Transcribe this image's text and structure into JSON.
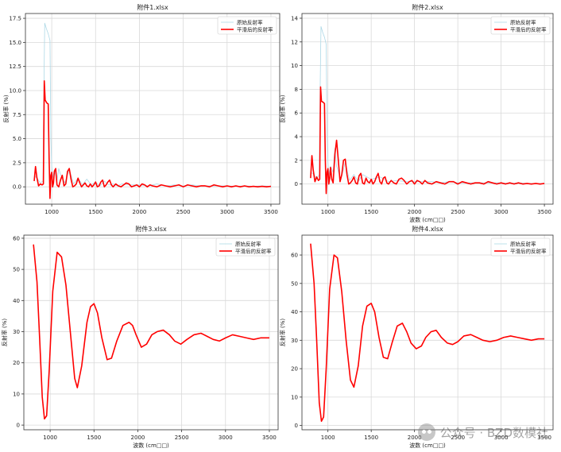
{
  "chart_data": [
    {
      "type": "line",
      "title": "附件1.xlsx",
      "xlabel": "",
      "ylabel": "反射率 (%)",
      "xlim": [
        700,
        3600
      ],
      "ylim": [
        -1.8,
        18
      ],
      "xticks": [
        1000,
        1500,
        2000,
        2500,
        3000,
        3500
      ],
      "yticks": [
        0.0,
        2.5,
        5.0,
        7.5,
        10.0,
        12.5,
        15.0,
        17.5
      ],
      "ytick_labels": [
        "0.0",
        "2.5",
        "5.0",
        "7.5",
        "10.0",
        "12.5",
        "15.0",
        "17.5"
      ],
      "legend": "top-right",
      "grid": true,
      "series": [
        {
          "name": "原始反射率",
          "color": "#add8e6",
          "x": [
            800,
            840,
            870,
            900,
            910,
            920,
            940,
            960,
            980,
            990,
            1000,
            1010,
            1030,
            1060,
            1080,
            1100,
            1150,
            1200,
            1250,
            1300,
            1350,
            1400,
            1450,
            1500,
            1550,
            1600,
            1650,
            1700,
            1750,
            1800,
            1900,
            2000,
            2100,
            2200,
            2300,
            2400,
            2500,
            2600,
            2700,
            2800,
            2900,
            3000,
            3100,
            3200,
            3300,
            3400,
            3500
          ],
          "y": [
            1.2,
            0.8,
            0.4,
            0.6,
            9.5,
            17.0,
            16.4,
            15.9,
            15.2,
            5.0,
            2.2,
            0.9,
            1.8,
            0.6,
            1.9,
            1.3,
            0.4,
            1.8,
            0.3,
            0.9,
            0.2,
            0.8,
            0.2,
            0.5,
            0.1,
            0.6,
            0.2,
            0.3,
            0.1,
            0.3,
            0.2,
            0.2,
            0.1,
            0.3,
            0.1,
            0.2,
            0.1,
            0.2,
            0.1,
            0.1,
            0.1,
            0.1,
            0.05,
            0.1,
            0.05,
            0.1,
            0.05
          ]
        },
        {
          "name": "平滑后的反射率",
          "color": "#ff0000",
          "x": [
            800,
            815,
            830,
            850,
            870,
            890,
            905,
            915,
            925,
            945,
            960,
            970,
            980,
            990,
            1000,
            1010,
            1020,
            1030,
            1045,
            1060,
            1080,
            1100,
            1120,
            1140,
            1160,
            1180,
            1200,
            1220,
            1240,
            1260,
            1280,
            1300,
            1320,
            1340,
            1360,
            1380,
            1400,
            1420,
            1440,
            1460,
            1480,
            1500,
            1520,
            1540,
            1560,
            1580,
            1600,
            1620,
            1640,
            1660,
            1680,
            1700,
            1730,
            1760,
            1790,
            1820,
            1850,
            1880,
            1910,
            1940,
            1970,
            2000,
            2030,
            2060,
            2090,
            2120,
            2150,
            2200,
            2250,
            2300,
            2350,
            2400,
            2450,
            2500,
            2550,
            2600,
            2650,
            2700,
            2750,
            2800,
            2850,
            2900,
            2950,
            3000,
            3050,
            3100,
            3150,
            3200,
            3250,
            3300,
            3350,
            3400,
            3450,
            3500
          ],
          "y": [
            0.6,
            2.1,
            1.0,
            0.1,
            0.3,
            0.2,
            0.3,
            11.0,
            9.0,
            8.7,
            8.6,
            3.0,
            -1.2,
            1.2,
            1.5,
            0.0,
            0.4,
            1.6,
            1.9,
            0.2,
            0.0,
            0.7,
            1.2,
            0.1,
            0.3,
            1.6,
            1.9,
            0.8,
            0.0,
            0.1,
            0.3,
            0.9,
            0.4,
            0.0,
            0.2,
            0.4,
            0.1,
            0.0,
            0.3,
            0.0,
            0.2,
            0.5,
            0.0,
            0.1,
            0.5,
            0.7,
            0.0,
            0.2,
            0.5,
            0.7,
            0.2,
            0.0,
            0.3,
            0.1,
            0.0,
            0.2,
            0.4,
            0.3,
            0.0,
            0.1,
            0.2,
            0.0,
            0.3,
            0.2,
            0.0,
            0.2,
            0.1,
            0.0,
            0.2,
            0.1,
            0.0,
            0.1,
            0.2,
            0.0,
            0.2,
            0.1,
            0.0,
            0.1,
            0.1,
            0.0,
            0.2,
            0.1,
            0.0,
            0.1,
            0.0,
            0.1,
            0.0,
            0.1,
            0.0,
            0.05,
            0.0,
            0.05,
            0.0,
            0.05
          ]
        }
      ]
    },
    {
      "type": "line",
      "title": "附件2.xlsx",
      "xlabel": "波数 (cm□□)",
      "ylabel": "反射率 (%)",
      "xlim": [
        700,
        3600
      ],
      "ylim": [
        -1.7,
        14.4
      ],
      "xticks": [
        1000,
        1500,
        2000,
        2500,
        3000,
        3500
      ],
      "yticks": [
        0,
        2,
        4,
        6,
        8,
        10,
        12,
        14
      ],
      "ytick_labels": [
        "0",
        "2",
        "4",
        "6",
        "8",
        "10",
        "12",
        "14"
      ],
      "legend": "top-right",
      "grid": true,
      "series": [
        {
          "name": "原始反射率",
          "color": "#add8e6",
          "x": [
            800,
            840,
            870,
            900,
            910,
            920,
            940,
            960,
            980,
            990,
            1000,
            1010,
            1030,
            1060,
            1080,
            1100,
            1150,
            1200,
            1250,
            1300,
            1350,
            1400,
            1500,
            1600,
            1700,
            1800,
            1900,
            2000,
            2100,
            2200,
            2300,
            2400,
            2500,
            2600,
            2700,
            2800,
            2900,
            3000,
            3100,
            3200,
            3300,
            3400,
            3500
          ],
          "y": [
            1.0,
            0.8,
            0.4,
            0.8,
            8.0,
            13.3,
            12.8,
            12.4,
            11.8,
            4.0,
            1.8,
            0.8,
            1.5,
            1.0,
            3.0,
            1.5,
            0.4,
            1.8,
            0.3,
            0.8,
            0.2,
            0.8,
            0.4,
            0.6,
            0.2,
            0.3,
            0.2,
            0.2,
            0.2,
            0.2,
            0.1,
            0.2,
            0.1,
            0.1,
            0.1,
            0.1,
            0.1,
            0.1,
            0.05,
            0.1,
            0.05,
            0.05,
            0.05
          ]
        },
        {
          "name": "平滑后的反射率",
          "color": "#ff0000",
          "x": [
            800,
            815,
            830,
            850,
            870,
            890,
            905,
            915,
            925,
            945,
            960,
            970,
            980,
            990,
            1000,
            1010,
            1020,
            1030,
            1045,
            1060,
            1080,
            1100,
            1120,
            1140,
            1160,
            1180,
            1200,
            1220,
            1240,
            1260,
            1280,
            1300,
            1320,
            1340,
            1360,
            1380,
            1400,
            1420,
            1440,
            1460,
            1480,
            1500,
            1520,
            1540,
            1560,
            1580,
            1600,
            1620,
            1640,
            1660,
            1680,
            1700,
            1730,
            1760,
            1790,
            1820,
            1850,
            1880,
            1910,
            1940,
            1970,
            2000,
            2030,
            2060,
            2090,
            2120,
            2150,
            2200,
            2250,
            2300,
            2350,
            2400,
            2450,
            2500,
            2550,
            2600,
            2650,
            2700,
            2750,
            2800,
            2850,
            2900,
            2950,
            3000,
            3050,
            3100,
            3150,
            3200,
            3250,
            3300,
            3350,
            3400,
            3450,
            3500
          ],
          "y": [
            0.5,
            2.4,
            1.2,
            0.2,
            0.6,
            0.3,
            0.4,
            8.2,
            7.0,
            6.9,
            6.8,
            2.0,
            -0.8,
            1.0,
            1.3,
            0.0,
            0.5,
            1.4,
            0.4,
            0.1,
            2.5,
            3.7,
            2.0,
            0.2,
            0.8,
            2.0,
            2.1,
            0.8,
            0.0,
            0.1,
            0.3,
            0.6,
            0.1,
            0.0,
            0.7,
            0.9,
            0.1,
            0.0,
            0.5,
            0.2,
            0.1,
            0.4,
            0.0,
            0.2,
            0.6,
            0.9,
            0.2,
            0.0,
            0.5,
            0.6,
            0.1,
            0.0,
            0.3,
            0.1,
            0.0,
            0.4,
            0.5,
            0.3,
            0.0,
            0.2,
            0.3,
            0.0,
            0.3,
            0.2,
            0.0,
            0.3,
            0.1,
            0.0,
            0.2,
            0.1,
            0.0,
            0.2,
            0.2,
            0.0,
            0.2,
            0.1,
            0.0,
            0.1,
            0.1,
            0.0,
            0.2,
            0.1,
            0.0,
            0.1,
            0.0,
            0.1,
            0.0,
            0.1,
            0.0,
            0.05,
            0.0,
            0.05,
            0.0,
            0.05
          ]
        }
      ]
    },
    {
      "type": "line",
      "title": "附件3.xlsx",
      "xlabel": "波数 (cm□□)",
      "ylabel": "反射率 (%)",
      "xlim": [
        700,
        3600
      ],
      "ylim": [
        -1.5,
        61
      ],
      "xticks": [
        1000,
        1500,
        2000,
        2500,
        3000,
        3500
      ],
      "yticks": [
        0,
        10,
        20,
        30,
        40,
        50,
        60
      ],
      "ytick_labels": [
        "0",
        "10",
        "20",
        "30",
        "40",
        "50",
        "60"
      ],
      "legend": "top-right",
      "grid": true,
      "series": [
        {
          "name": "原始反射率",
          "color": "#add8e6",
          "x": [],
          "y": []
        },
        {
          "name": "平滑后的反射率",
          "color": "#ff0000",
          "x": [
            810,
            850,
            880,
            910,
            935,
            960,
            990,
            1030,
            1080,
            1130,
            1180,
            1230,
            1280,
            1310,
            1360,
            1420,
            1460,
            1500,
            1540,
            1590,
            1650,
            1700,
            1760,
            1830,
            1900,
            1940,
            1980,
            2040,
            2100,
            2160,
            2220,
            2290,
            2360,
            2420,
            2490,
            2560,
            2640,
            2720,
            2790,
            2860,
            2930,
            3000,
            3080,
            3160,
            3240,
            3320,
            3400,
            3500
          ],
          "y": [
            58.0,
            46.0,
            28.0,
            9.0,
            2.0,
            3.0,
            18.0,
            43.0,
            55.5,
            54.0,
            45.0,
            30.0,
            15.0,
            12.0,
            19.0,
            33.0,
            38.0,
            39.0,
            36.0,
            28.0,
            21.0,
            21.5,
            27.0,
            32.0,
            33.0,
            32.0,
            29.0,
            25.0,
            26.0,
            29.0,
            30.0,
            30.5,
            29.0,
            27.0,
            26.0,
            27.5,
            29.0,
            29.5,
            28.5,
            27.5,
            27.0,
            28.0,
            29.0,
            28.5,
            28.0,
            27.5,
            28.0,
            28.0
          ]
        }
      ]
    },
    {
      "type": "line",
      "title": "附件4.xlsx",
      "xlabel": "波数 (cm□□)",
      "ylabel": "反射率 (%)",
      "xlim": [
        700,
        3600
      ],
      "ylim": [
        -1.5,
        67
      ],
      "xticks": [
        1000,
        1500,
        2000,
        2500,
        3000,
        3500
      ],
      "yticks": [
        0,
        10,
        20,
        30,
        40,
        50,
        60
      ],
      "ytick_labels": [
        "0",
        "10",
        "20",
        "30",
        "40",
        "50",
        "60"
      ],
      "legend": "top-right",
      "grid": true,
      "series": [
        {
          "name": "原始反射率",
          "color": "#add8e6",
          "x": [],
          "y": []
        },
        {
          "name": "平滑后的反射率",
          "color": "#ff0000",
          "x": [
            800,
            840,
            870,
            900,
            925,
            950,
            980,
            1020,
            1070,
            1110,
            1160,
            1210,
            1260,
            1300,
            1350,
            1400,
            1450,
            1500,
            1540,
            1590,
            1640,
            1690,
            1740,
            1800,
            1860,
            1910,
            1960,
            2020,
            2080,
            2130,
            2190,
            2250,
            2310,
            2380,
            2440,
            2500,
            2570,
            2650,
            2720,
            2790,
            2870,
            2950,
            3030,
            3110,
            3190,
            3270,
            3350,
            3430,
            3500
          ],
          "y": [
            64.0,
            50.0,
            30.0,
            8.0,
            1.5,
            3.0,
            20.0,
            48.0,
            60.0,
            59.0,
            47.0,
            30.0,
            16.0,
            13.5,
            21.0,
            35.0,
            42.0,
            43.0,
            40.0,
            31.0,
            24.0,
            23.5,
            29.0,
            35.0,
            36.0,
            33.0,
            29.0,
            27.0,
            28.0,
            31.0,
            33.0,
            33.5,
            31.0,
            29.0,
            28.5,
            29.5,
            31.5,
            32.0,
            31.0,
            30.0,
            29.5,
            30.0,
            31.0,
            31.5,
            31.0,
            30.5,
            30.0,
            30.5,
            30.5
          ]
        }
      ]
    }
  ],
  "watermark": {
    "text": "公众号 · BZD数模社",
    "icon": "wechat-icon"
  }
}
